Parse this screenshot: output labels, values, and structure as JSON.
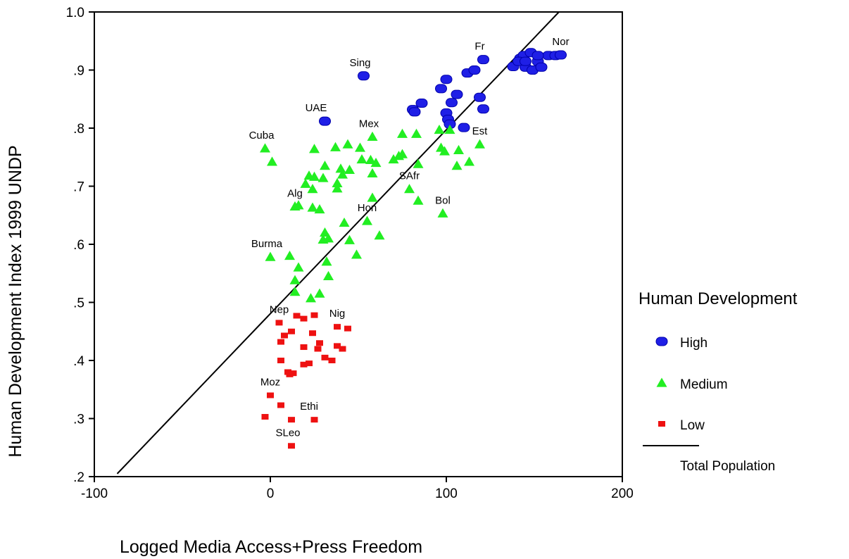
{
  "chart_data": {
    "type": "scatter",
    "title": "",
    "xlabel": "Logged Media Access+Press Freedom",
    "ylabel": "Human Development Index 1999 UNDP",
    "xlim": [
      -100,
      200
    ],
    "ylim": [
      0.2,
      1.0
    ],
    "x_ticks": [
      -100,
      0,
      100,
      200
    ],
    "x_tick_labels": [
      "-100",
      "0",
      "100",
      "200"
    ],
    "y_ticks": [
      0.2,
      0.3,
      0.4,
      0.5,
      0.6,
      0.7,
      0.8,
      0.9,
      1.0
    ],
    "y_tick_labels": [
      ".2",
      ".3",
      ".4",
      ".5",
      ".6",
      ".7",
      ".8",
      ".9",
      "1.0"
    ],
    "grid": false,
    "legend": {
      "title": "Human Development",
      "placement": "right",
      "entries": [
        "High",
        "Medium",
        "Low",
        "Total Population"
      ]
    },
    "fit_line": {
      "name": "Total Population",
      "x1": -87,
      "y1": 0.205,
      "x2": 164,
      "y2": 1.0,
      "color": "#000000"
    },
    "series": [
      {
        "name": "High",
        "marker": "pill",
        "color": "#1f1fe6",
        "points": [
          [
            53,
            0.89
          ],
          [
            31,
            0.812
          ],
          [
            97,
            0.868
          ],
          [
            100,
            0.884
          ],
          [
            112,
            0.895
          ],
          [
            116,
            0.9
          ],
          [
            121,
            0.918
          ],
          [
            106,
            0.858
          ],
          [
            103,
            0.844
          ],
          [
            86,
            0.843
          ],
          [
            81,
            0.832
          ],
          [
            82,
            0.828
          ],
          [
            100,
            0.826
          ],
          [
            101,
            0.815
          ],
          [
            102,
            0.807
          ],
          [
            110,
            0.801
          ],
          [
            119,
            0.853
          ],
          [
            121,
            0.833
          ],
          [
            138,
            0.906
          ],
          [
            142,
            0.92
          ],
          [
            144,
            0.925
          ],
          [
            145,
            0.905
          ],
          [
            148,
            0.93
          ],
          [
            149,
            0.9
          ],
          [
            152,
            0.915
          ],
          [
            154,
            0.905
          ],
          [
            158,
            0.925
          ],
          [
            162,
            0.925
          ],
          [
            165,
            0.926
          ],
          [
            152,
            0.925
          ],
          [
            141,
            0.915
          ],
          [
            145,
            0.915
          ]
        ]
      },
      {
        "name": "Medium",
        "marker": "triangle",
        "color": "#22ee22",
        "points": [
          [
            -3,
            0.765
          ],
          [
            1,
            0.742
          ],
          [
            25,
            0.764
          ],
          [
            37,
            0.767
          ],
          [
            44,
            0.772
          ],
          [
            51,
            0.766
          ],
          [
            58,
            0.785
          ],
          [
            75,
            0.79
          ],
          [
            83,
            0.79
          ],
          [
            96,
            0.797
          ],
          [
            102,
            0.797
          ],
          [
            119,
            0.772
          ],
          [
            107,
            0.762
          ],
          [
            99,
            0.76
          ],
          [
            97,
            0.766
          ],
          [
            113,
            0.742
          ],
          [
            106,
            0.735
          ],
          [
            84,
            0.738
          ],
          [
            70,
            0.746
          ],
          [
            73,
            0.752
          ],
          [
            75,
            0.755
          ],
          [
            57,
            0.745
          ],
          [
            60,
            0.74
          ],
          [
            52,
            0.746
          ],
          [
            45,
            0.728
          ],
          [
            40,
            0.73
          ],
          [
            41,
            0.72
          ],
          [
            31,
            0.735
          ],
          [
            22,
            0.718
          ],
          [
            25,
            0.716
          ],
          [
            30,
            0.714
          ],
          [
            20,
            0.704
          ],
          [
            24,
            0.695
          ],
          [
            38,
            0.696
          ],
          [
            38,
            0.705
          ],
          [
            28,
            0.66
          ],
          [
            14,
            0.665
          ],
          [
            16,
            0.667
          ],
          [
            24,
            0.663
          ],
          [
            58,
            0.68
          ],
          [
            79,
            0.695
          ],
          [
            84,
            0.675
          ],
          [
            98,
            0.653
          ],
          [
            42,
            0.637
          ],
          [
            55,
            0.64
          ],
          [
            31,
            0.62
          ],
          [
            30,
            0.608
          ],
          [
            33,
            0.61
          ],
          [
            45,
            0.607
          ],
          [
            49,
            0.582
          ],
          [
            62,
            0.615
          ],
          [
            0,
            0.578
          ],
          [
            11,
            0.58
          ],
          [
            16,
            0.56
          ],
          [
            32,
            0.57
          ],
          [
            33,
            0.545
          ],
          [
            14,
            0.538
          ],
          [
            14,
            0.518
          ],
          [
            28,
            0.515
          ],
          [
            23,
            0.507
          ],
          [
            58,
            0.722
          ]
        ]
      },
      {
        "name": "Low",
        "marker": "square",
        "color": "#ee1111",
        "points": [
          [
            5,
            0.465
          ],
          [
            15,
            0.477
          ],
          [
            19,
            0.472
          ],
          [
            25,
            0.478
          ],
          [
            38,
            0.458
          ],
          [
            44,
            0.455
          ],
          [
            12,
            0.45
          ],
          [
            8,
            0.443
          ],
          [
            6,
            0.432
          ],
          [
            24,
            0.447
          ],
          [
            19,
            0.423
          ],
          [
            28,
            0.43
          ],
          [
            27,
            0.42
          ],
          [
            38,
            0.425
          ],
          [
            41,
            0.42
          ],
          [
            31,
            0.405
          ],
          [
            35,
            0.4
          ],
          [
            19,
            0.393
          ],
          [
            22,
            0.395
          ],
          [
            6,
            0.4
          ],
          [
            10,
            0.38
          ],
          [
            11,
            0.376
          ],
          [
            13,
            0.378
          ],
          [
            0,
            0.34
          ],
          [
            6,
            0.323
          ],
          [
            -3,
            0.303
          ],
          [
            12,
            0.298
          ],
          [
            25,
            0.298
          ],
          [
            12,
            0.253
          ]
        ]
      }
    ],
    "annotations": [
      {
        "text": "Sing",
        "x": 51,
        "y": 0.89
      },
      {
        "text": "UAE",
        "x": 26,
        "y": 0.812
      },
      {
        "text": "Fr",
        "x": 119,
        "y": 0.918
      },
      {
        "text": "Nor",
        "x": 165,
        "y": 0.926
      },
      {
        "text": "Cuba",
        "x": -5,
        "y": 0.765
      },
      {
        "text": "Mex",
        "x": 56,
        "y": 0.785
      },
      {
        "text": "Est",
        "x": 119,
        "y": 0.772
      },
      {
        "text": "SAfr",
        "x": 79,
        "y": 0.695
      },
      {
        "text": "Alg",
        "x": 14,
        "y": 0.665
      },
      {
        "text": "Bol",
        "x": 98,
        "y": 0.653
      },
      {
        "text": "Hon",
        "x": 55,
        "y": 0.64
      },
      {
        "text": "Burma",
        "x": -2,
        "y": 0.578
      },
      {
        "text": "Nep",
        "x": 5,
        "y": 0.465
      },
      {
        "text": "Nig",
        "x": 38,
        "y": 0.458
      },
      {
        "text": "Moz",
        "x": 0,
        "y": 0.34
      },
      {
        "text": "Ethi",
        "x": 22,
        "y": 0.298
      },
      {
        "text": "SLeo",
        "x": 10,
        "y": 0.253
      }
    ]
  }
}
